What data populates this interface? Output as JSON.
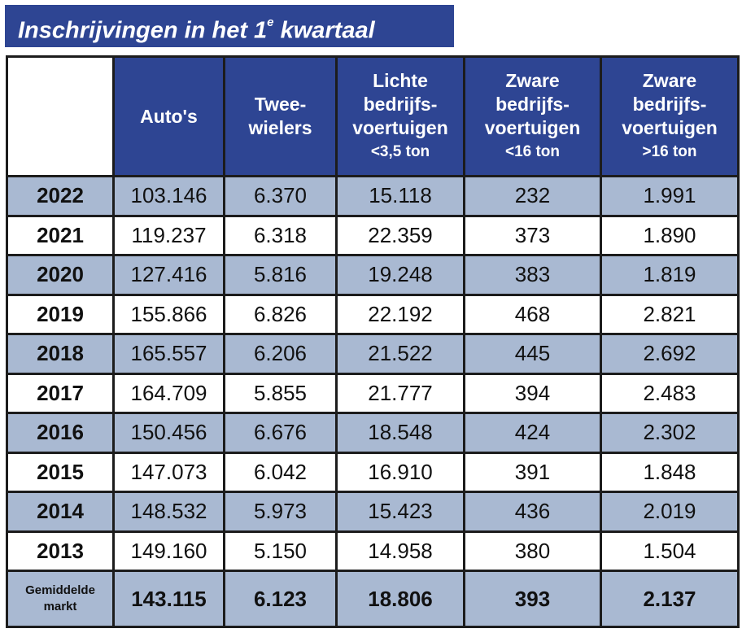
{
  "title": {
    "text": "Inschrijvingen in het 1",
    "sup": "e",
    "suffix": " kwartaal"
  },
  "headers": [
    {
      "lines": [
        "Auto's"
      ],
      "unit": ""
    },
    {
      "lines": [
        "Twee-",
        "wielers"
      ],
      "unit": ""
    },
    {
      "lines": [
        "Lichte",
        "bedrijfs-",
        "voertuigen"
      ],
      "unit": "<3,5 ton"
    },
    {
      "lines": [
        "Zware",
        "bedrijfs-",
        "voertuigen"
      ],
      "unit": "<16 ton"
    },
    {
      "lines": [
        "Zware",
        "bedrijfs-",
        "voertuigen"
      ],
      "unit": ">16 ton"
    }
  ],
  "rows": [
    {
      "year": "2022",
      "values": [
        "103.146",
        "6.370",
        "15.118",
        "232",
        "1.991"
      ]
    },
    {
      "year": "2021",
      "values": [
        "119.237",
        "6.318",
        "22.359",
        "373",
        "1.890"
      ]
    },
    {
      "year": "2020",
      "values": [
        "127.416",
        "5.816",
        "19.248",
        "383",
        "1.819"
      ]
    },
    {
      "year": "2019",
      "values": [
        "155.866",
        "6.826",
        "22.192",
        "468",
        "2.821"
      ]
    },
    {
      "year": "2018",
      "values": [
        "165.557",
        "6.206",
        "21.522",
        "445",
        "2.692"
      ]
    },
    {
      "year": "2017",
      "values": [
        "164.709",
        "5.855",
        "21.777",
        "394",
        "2.483"
      ]
    },
    {
      "year": "2016",
      "values": [
        "150.456",
        "6.676",
        "18.548",
        "424",
        "2.302"
      ]
    },
    {
      "year": "2015",
      "values": [
        "147.073",
        "6.042",
        "16.910",
        "391",
        "1.848"
      ]
    },
    {
      "year": "2014",
      "values": [
        "148.532",
        "5.973",
        "15.423",
        "436",
        "2.019"
      ]
    },
    {
      "year": "2013",
      "values": [
        "149.160",
        "5.150",
        "14.958",
        "380",
        "1.504"
      ]
    }
  ],
  "average": {
    "label_lines": [
      "Gemiddelde",
      "markt"
    ],
    "values": [
      "143.115",
      "6.123",
      "18.806",
      "393",
      "2.137"
    ]
  }
}
